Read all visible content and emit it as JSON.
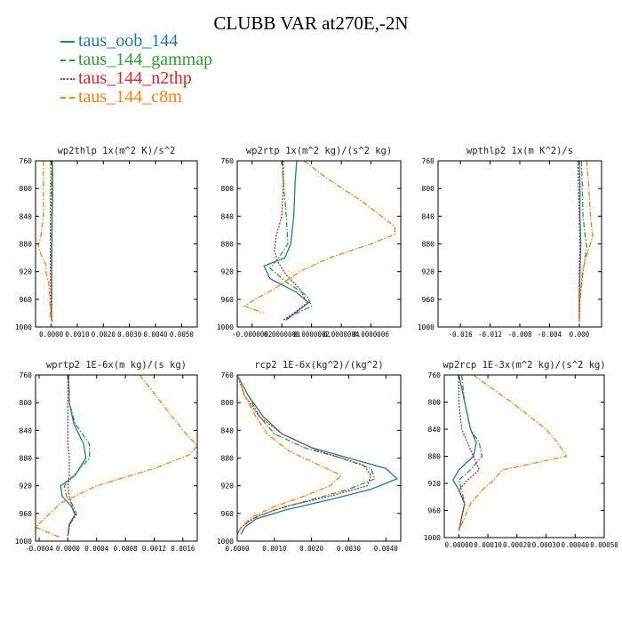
{
  "title": "CLUBB VAR at270E,-2N",
  "legend": [
    {
      "label": "taus_oob_144",
      "color": "#1f77b4",
      "dash": "solid"
    },
    {
      "label": "taus_144_gammap",
      "color": "#2ca02c",
      "dash": "dashdot"
    },
    {
      "label": "taus_144_n2thp",
      "color": "#d62728",
      "dash": "dotted"
    },
    {
      "label": "taus_144_c8m",
      "color": "#ff7f0e",
      "dash": "dashdot"
    }
  ],
  "chart_data": [
    {
      "type": "line",
      "title": "wp2thlp  1x(m^2 K)/s^2",
      "xlim": [
        -0.0006,
        0.0056
      ],
      "ylim": [
        760,
        1000
      ],
      "y_inverted": true,
      "xticks": [
        "0.0000",
        "0.0010",
        "0.0020",
        "0.0030",
        "0.0040",
        "0.0050"
      ],
      "xtick_values": [
        0,
        0.001,
        0.002,
        0.003,
        0.004,
        0.005
      ],
      "yticks": [
        "760",
        "800",
        "840",
        "880",
        "920",
        "960",
        "1000"
      ],
      "series": [
        {
          "name": "taus_oob_144",
          "y": [
            760,
            800,
            840,
            880,
            920,
            960,
            985,
            992
          ],
          "x": [
            5e-05,
            6e-05,
            4e-05,
            3e-05,
            2e-05,
            2e-05,
            1e-05,
            3e-05
          ]
        },
        {
          "name": "taus_144_gammap",
          "y": [
            760,
            800,
            840,
            880,
            920,
            960,
            985,
            992
          ],
          "x": [
            3e-05,
            2e-05,
            2e-05,
            1e-05,
            1e-05,
            2e-05,
            1e-05,
            4e-05
          ]
        },
        {
          "name": "taus_144_n2thp",
          "y": [
            760,
            800,
            840,
            880,
            920,
            960,
            985,
            992
          ],
          "x": [
            -1e-05,
            -2e-05,
            -3e-05,
            -3e-05,
            -3e-05,
            -1e-05,
            1e-05,
            4e-05
          ]
        },
        {
          "name": "taus_144_c8m",
          "y": [
            760,
            800,
            840,
            870,
            882,
            895,
            910,
            920,
            935,
            960,
            985,
            992
          ],
          "x": [
            -0.0003,
            -0.0003,
            -0.0003,
            -0.0004,
            -0.0005,
            -0.0004,
            -0.0002,
            -0.0002,
            -0.0001,
            -5e-05,
            -3e-05,
            3e-05
          ]
        }
      ]
    },
    {
      "type": "line",
      "title": "wp2rtp  1x(m^2 kg)/(s^2 kg)",
      "xlim": [
        -3e-07,
        8e-07
      ],
      "ylim": [
        760,
        1000
      ],
      "y_inverted": true,
      "xticks": [
        "-0.0000002",
        "0.0000000",
        "0.0000002",
        "0.0000004",
        "0.0000006"
      ],
      "xtick_values": [
        -2e-07,
        0,
        2e-07,
        4e-07,
        6e-07
      ],
      "yticks": [
        "760",
        "800",
        "840",
        "880",
        "920",
        "960",
        "1000"
      ],
      "series": [
        {
          "name": "taus_oob_144",
          "y": [
            760,
            790,
            840,
            880,
            900,
            912,
            930,
            950,
            965,
            978,
            990
          ],
          "x": [
            1e-07,
            9e-08,
            8e-08,
            6e-08,
            2e-08,
            -1.2e-07,
            -8e-08,
            1e-07,
            1.8e-07,
            1e-07,
            3e-08
          ]
        },
        {
          "name": "taus_144_gammap",
          "y": [
            760,
            790,
            840,
            880,
            900,
            915,
            935,
            955,
            970,
            982,
            990
          ],
          "x": [
            0.0,
            1e-08,
            3e-08,
            4e-08,
            -2e-08,
            -8e-08,
            3e-08,
            1.7e-07,
            2e-07,
            8e-08,
            1e-08
          ]
        },
        {
          "name": "taus_144_n2thp",
          "y": [
            760,
            790,
            840,
            870,
            890,
            905,
            925,
            945,
            965,
            980,
            990
          ],
          "x": [
            1e-08,
            1e-08,
            0.0,
            -4e-08,
            -5e-08,
            -3e-08,
            3e-08,
            1.2e-07,
            1.7e-07,
            8e-08,
            1e-08
          ]
        },
        {
          "name": "taus_144_c8m",
          "y": [
            760,
            785,
            820,
            855,
            866,
            880,
            900,
            920,
            945,
            960,
            970,
            980
          ],
          "x": [
            1.5e-07,
            3e-07,
            5.5e-07,
            7.6e-07,
            7.6e-07,
            6e-07,
            3.2e-07,
            1.2e-07,
            -5e-08,
            -1.8e-07,
            -2.5e-07,
            -1.2e-07
          ]
        }
      ]
    },
    {
      "type": "line",
      "title": "wpthlp2  1x(m K^2)/s",
      "xlim": [
        -0.019,
        0.003
      ],
      "ylim": [
        760,
        1000
      ],
      "y_inverted": true,
      "xticks": [
        "-0.016",
        "-0.012",
        "-0.008",
        "-0.004",
        "0.000"
      ],
      "xtick_values": [
        -0.016,
        -0.012,
        -0.008,
        -0.004,
        0
      ],
      "yticks": [
        "760",
        "800",
        "840",
        "880",
        "920",
        "960",
        "1000"
      ],
      "series": [
        {
          "name": "taus_oob_144",
          "y": [
            760,
            800,
            840,
            880,
            920,
            960,
            992
          ],
          "x": [
            0.0,
            0.0001,
            0.0001,
            0.0002,
            0.0001,
            0.0,
            0.0
          ]
        },
        {
          "name": "taus_144_gammap",
          "y": [
            760,
            800,
            840,
            870,
            885,
            920,
            960,
            992
          ],
          "x": [
            0.0003,
            0.0004,
            0.0005,
            0.0008,
            0.001,
            0.0005,
            0.0001,
            0.0
          ]
        },
        {
          "name": "taus_144_n2thp",
          "y": [
            760,
            800,
            840,
            880,
            920,
            960,
            992
          ],
          "x": [
            -0.0002,
            -0.0001,
            0.0,
            0.0001,
            0.0,
            0.0,
            0.0
          ]
        },
        {
          "name": "taus_144_c8m",
          "y": [
            760,
            800,
            840,
            870,
            890,
            920,
            960,
            992
          ],
          "x": [
            0.001,
            0.0013,
            0.0015,
            0.0018,
            0.0012,
            0.0004,
            0.0001,
            0.0
          ]
        }
      ]
    },
    {
      "type": "line",
      "title": "wprtp2  1E-6x(m kg)/(s kg)",
      "xlim": [
        -0.00045,
        0.0018
      ],
      "ylim": [
        760,
        1000
      ],
      "y_inverted": true,
      "xticks": [
        "-0.0004",
        "0.0000",
        "0.0004",
        "0.0008",
        "0.0012",
        "0.0016"
      ],
      "xtick_values": [
        -0.0004,
        0,
        0.0004,
        0.0008,
        0.0012,
        0.0016
      ],
      "yticks": [
        "760",
        "800",
        "840",
        "880",
        "920",
        "960",
        "1000"
      ],
      "series": [
        {
          "name": "taus_oob_144",
          "y": [
            760,
            800,
            830,
            860,
            880,
            905,
            920,
            935,
            950,
            962,
            975,
            992
          ],
          "x": [
            1e-05,
            2e-05,
            8e-05,
            0.00022,
            0.00025,
            0.0001,
            -0.0001,
            -8e-05,
            5e-05,
            0.0001,
            2e-05,
            0.0
          ]
        },
        {
          "name": "taus_144_gammap",
          "y": [
            760,
            800,
            830,
            860,
            880,
            905,
            920,
            935,
            950,
            962,
            975,
            992
          ],
          "x": [
            1e-05,
            2e-05,
            0.0001,
            0.0003,
            0.0003,
            8e-05,
            -5e-05,
            -2e-05,
            8e-05,
            0.00012,
            3e-05,
            0.0
          ]
        },
        {
          "name": "taus_144_n2thp",
          "y": [
            760,
            800,
            830,
            860,
            880,
            905,
            920,
            935,
            950,
            962,
            975,
            992
          ],
          "x": [
            0.0,
            0.0,
            0.0,
            0.0,
            2e-05,
            2e-05,
            0.0,
            2e-05,
            6e-05,
            0.0001,
            3e-05,
            0.0
          ]
        },
        {
          "name": "taus_144_c8m",
          "y": [
            760,
            800,
            840,
            862,
            875,
            895,
            920,
            945,
            965,
            980,
            995
          ],
          "x": [
            0.001,
            0.0013,
            0.0016,
            0.0018,
            0.0017,
            0.0012,
            0.0004,
            -0.0001,
            -0.0003,
            -0.00045,
            -0.0001
          ]
        }
      ]
    },
    {
      "type": "line",
      "title": "rcp2  1E-6x(kg^2)/(kg^2)",
      "xlim": [
        0,
        0.0044
      ],
      "ylim": [
        760,
        1000
      ],
      "y_inverted": true,
      "xticks": [
        "0.0000",
        "0.0010",
        "0.0020",
        "0.0030",
        "0.0040"
      ],
      "xtick_values": [
        0,
        0.001,
        0.002,
        0.003,
        0.004
      ],
      "yticks": [
        "760",
        "800",
        "840",
        "880",
        "920",
        "960",
        "1000"
      ],
      "series": [
        {
          "name": "taus_oob_144",
          "y": [
            760,
            790,
            820,
            845,
            865,
            880,
            895,
            910,
            925,
            940,
            955,
            968,
            980,
            990
          ],
          "x": [
            0.0,
            0.0003,
            0.0007,
            0.0012,
            0.002,
            0.003,
            0.004,
            0.0043,
            0.0036,
            0.0025,
            0.0013,
            0.0005,
            0.0002,
            0.0001
          ]
        },
        {
          "name": "taus_144_gammap",
          "y": [
            760,
            790,
            820,
            845,
            865,
            880,
            895,
            910,
            925,
            940,
            955,
            968,
            980,
            990
          ],
          "x": [
            0.0,
            0.0003,
            0.0006,
            0.001,
            0.0018,
            0.0028,
            0.0036,
            0.0037,
            0.003,
            0.002,
            0.001,
            0.0004,
            0.0001,
            0.0
          ]
        },
        {
          "name": "taus_144_n2thp",
          "y": [
            760,
            790,
            820,
            845,
            870,
            890,
            905,
            920,
            935,
            950,
            965,
            980,
            990
          ],
          "x": [
            0.0,
            0.0002,
            0.0006,
            0.0012,
            0.0022,
            0.0034,
            0.0036,
            0.0035,
            0.0025,
            0.0013,
            0.0005,
            0.0001,
            0.0
          ]
        },
        {
          "name": "taus_144_c8m",
          "y": [
            760,
            790,
            820,
            845,
            870,
            890,
            905,
            920,
            935,
            950,
            965,
            980,
            990
          ],
          "x": [
            0.0,
            0.0002,
            0.0005,
            0.0008,
            0.0014,
            0.0022,
            0.0028,
            0.0025,
            0.0018,
            0.001,
            0.0004,
            0.0001,
            0.0
          ]
        }
      ]
    },
    {
      "type": "line",
      "title": "wp2rcp  1E-3x(m^2 kg)/(s^2 kg)",
      "xlim": [
        -5e-05,
        0.0005
      ],
      "ylim": [
        760,
        1000
      ],
      "y_inverted": true,
      "xticks": [
        "0.00000",
        "0.00010",
        "0.00020",
        "0.00030",
        "0.00040",
        "0.00050"
      ],
      "xtick_values": [
        0,
        0.0001,
        0.0002,
        0.0003,
        0.0004,
        0.0005
      ],
      "yticks": [
        "760",
        "800",
        "840",
        "880",
        "920",
        "960",
        "1000"
      ],
      "series": [
        {
          "name": "taus_oob_144",
          "y": [
            760,
            800,
            840,
            860,
            880,
            900,
            915,
            930,
            950,
            970,
            990
          ],
          "x": [
            0.0,
            2e-05,
            4e-05,
            6e-05,
            5e-05,
            0.0,
            -2e-05,
            0.0,
            2e-05,
            1e-05,
            0.0
          ]
        },
        {
          "name": "taus_144_gammap",
          "y": [
            760,
            800,
            840,
            860,
            880,
            900,
            915,
            930,
            950,
            970,
            990
          ],
          "x": [
            1e-05,
            2e-05,
            4e-05,
            7e-05,
            8e-05,
            4e-05,
            0.0,
            1e-05,
            2e-05,
            1e-05,
            0.0
          ]
        },
        {
          "name": "taus_144_n2thp",
          "y": [
            760,
            800,
            840,
            860,
            880,
            900,
            915,
            930,
            950,
            970,
            990
          ],
          "x": [
            0.0,
            0.0,
            1e-05,
            3e-05,
            5e-05,
            7e-05,
            3e-05,
            0.0,
            2e-05,
            1e-05,
            0.0
          ]
        },
        {
          "name": "taus_144_c8m",
          "y": [
            760,
            800,
            840,
            860,
            880,
            900,
            915,
            930,
            950,
            970,
            990
          ],
          "x": [
            5e-05,
            0.00018,
            0.0003,
            0.00034,
            0.00037,
            0.00015,
            0.00012,
            8e-05,
            4e-05,
            2e-05,
            0.0
          ]
        }
      ]
    }
  ]
}
